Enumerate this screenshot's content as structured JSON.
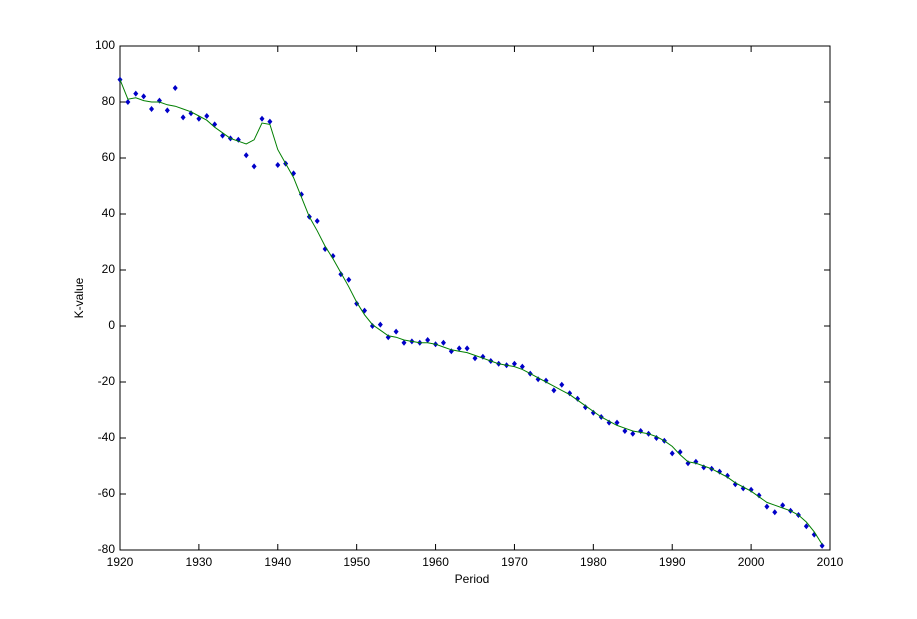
{
  "chart_data": {
    "type": "line",
    "xlabel": "Period",
    "ylabel": "K-value",
    "x": [
      1920,
      1921,
      1922,
      1923,
      1924,
      1925,
      1926,
      1927,
      1928,
      1929,
      1930,
      1931,
      1932,
      1933,
      1934,
      1935,
      1936,
      1937,
      1938,
      1939,
      1940,
      1941,
      1942,
      1943,
      1944,
      1945,
      1946,
      1947,
      1948,
      1949,
      1950,
      1951,
      1952,
      1953,
      1954,
      1955,
      1956,
      1957,
      1958,
      1959,
      1960,
      1961,
      1962,
      1963,
      1964,
      1965,
      1966,
      1967,
      1968,
      1969,
      1970,
      1971,
      1972,
      1973,
      1974,
      1975,
      1976,
      1977,
      1978,
      1979,
      1980,
      1981,
      1982,
      1983,
      1984,
      1985,
      1986,
      1987,
      1988,
      1989,
      1990,
      1991,
      1992,
      1993,
      1994,
      1995,
      1996,
      1997,
      1998,
      1999,
      2000,
      2001,
      2002,
      2003,
      2004,
      2005,
      2006,
      2007,
      2008,
      2009
    ],
    "series": [
      {
        "mode": "markers",
        "color": "#0000c8",
        "values": [
          88,
          80,
          83,
          82,
          77.5,
          80.5,
          77,
          85,
          74.5,
          76,
          74,
          75,
          72,
          68,
          67,
          66.5,
          61,
          57,
          74,
          73,
          57.5,
          58,
          54.5,
          47,
          39,
          37.5,
          27.5,
          25,
          18.5,
          16.5,
          8,
          5.5,
          0,
          0.5,
          -4,
          -2,
          -6,
          -5.5,
          -6,
          -5,
          -6.5,
          -6,
          -9,
          -8,
          -8,
          -11.5,
          -11,
          -12.5,
          -13.5,
          -14,
          -13.5,
          -14.5,
          -17,
          -19,
          -19.5,
          -23,
          -21,
          -24,
          -26,
          -29,
          -31,
          -32.5,
          -34.5,
          -34.5,
          -37.5,
          -38.5,
          -37.5,
          -38.5,
          -40,
          -41,
          -45.5,
          -45,
          -49,
          -48.5,
          -50.5,
          -51,
          -52,
          -53.5,
          -56.5,
          -58,
          -58.5,
          -60.5,
          -64.5,
          -66.5,
          -64,
          -66,
          -67.5,
          -71.5,
          -74.5,
          -78.5
        ]
      },
      {
        "mode": "line",
        "color": "#007f00",
        "values": [
          88,
          81,
          81.5,
          80.5,
          80,
          80,
          79,
          78.5,
          77.5,
          76.5,
          75,
          73.5,
          71,
          69,
          67,
          66,
          65,
          66.5,
          72.5,
          72,
          63,
          58,
          53,
          46,
          39,
          34,
          28.5,
          24,
          19,
          14,
          8.5,
          4,
          0.5,
          -1.5,
          -3.5,
          -4,
          -5,
          -5.5,
          -6,
          -6,
          -6.5,
          -7.5,
          -8.5,
          -9,
          -9.5,
          -10.5,
          -11.5,
          -12.5,
          -13.5,
          -14,
          -14.5,
          -15.5,
          -17,
          -18.5,
          -20,
          -21.5,
          -23,
          -24.5,
          -26.5,
          -28.5,
          -30.5,
          -32.5,
          -34,
          -35.5,
          -36.5,
          -37.5,
          -38,
          -38.5,
          -39.5,
          -41,
          -43,
          -46,
          -48.5,
          -49,
          -50,
          -51,
          -52.5,
          -54,
          -56,
          -57.5,
          -59,
          -61,
          -63,
          -64,
          -65,
          -66,
          -67.5,
          -70,
          -73.5,
          -78
        ]
      }
    ],
    "xlim": [
      1920,
      2010
    ],
    "ylim": [
      -80,
      100
    ],
    "xticks": [
      1920,
      1930,
      1940,
      1950,
      1960,
      1970,
      1980,
      1990,
      2000,
      2010
    ],
    "yticks": [
      -80,
      -60,
      -40,
      -20,
      0,
      20,
      40,
      60,
      80,
      100
    ],
    "grid": false
  }
}
